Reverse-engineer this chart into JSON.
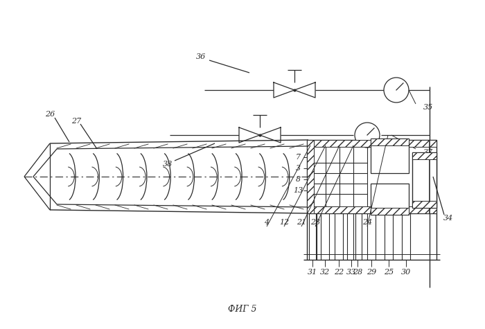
{
  "bg_color": "#ffffff",
  "line_color": "#2a2a2a",
  "lw": 0.9,
  "title": "ФИГ 5",
  "fig_w": 7.0,
  "fig_h": 4.75,
  "dpi": 100
}
